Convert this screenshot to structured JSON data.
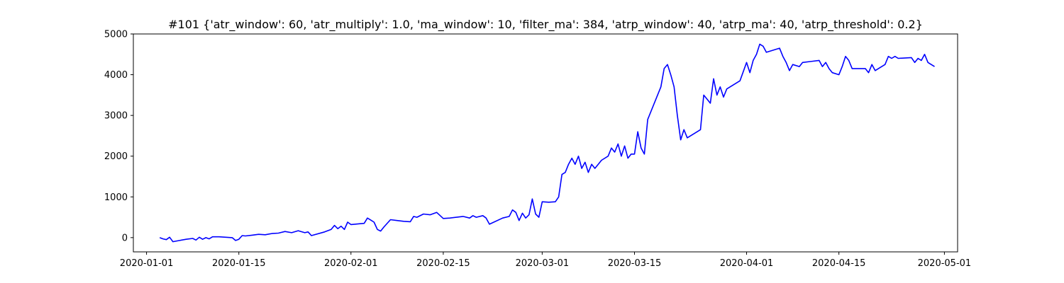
{
  "chart_data": {
    "type": "line",
    "title": "#101 {'atr_window': 60, 'atr_multiply': 1.0, 'ma_window': 10, 'filter_ma': 384, 'atrp_window': 40, 'atrp_ma': 40, 'atrp_threshold': 0.2}",
    "xlabel": "",
    "ylabel": "",
    "xlim": [
      "2019-12-30",
      "2020-05-03"
    ],
    "ylim": [
      -350,
      5000
    ],
    "x_ticks": [
      "2020-01-01",
      "2020-01-15",
      "2020-02-01",
      "2020-02-15",
      "2020-03-01",
      "2020-03-15",
      "2020-04-01",
      "2020-04-15",
      "2020-05-01"
    ],
    "y_ticks": [
      0,
      1000,
      2000,
      3000,
      4000,
      5000
    ],
    "grid": false,
    "line_color": "#0000ff",
    "series": [
      {
        "points": [
          [
            "2020-01-03",
            0
          ],
          [
            "2020-01-03T12",
            -30
          ],
          [
            "2020-01-04",
            -50
          ],
          [
            "2020-01-04T12",
            10
          ],
          [
            "2020-01-05",
            -100
          ],
          [
            "2020-01-06",
            -70
          ],
          [
            "2020-01-07",
            -40
          ],
          [
            "2020-01-08",
            -20
          ],
          [
            "2020-01-08T12",
            -60
          ],
          [
            "2020-01-09",
            10
          ],
          [
            "2020-01-09T12",
            -40
          ],
          [
            "2020-01-10",
            0
          ],
          [
            "2020-01-10T12",
            -30
          ],
          [
            "2020-01-11",
            20
          ],
          [
            "2020-01-12",
            20
          ],
          [
            "2020-01-14",
            0
          ],
          [
            "2020-01-14T12",
            -70
          ],
          [
            "2020-01-15",
            -40
          ],
          [
            "2020-01-15T12",
            50
          ],
          [
            "2020-01-16",
            40
          ],
          [
            "2020-01-17",
            60
          ],
          [
            "2020-01-18",
            80
          ],
          [
            "2020-01-19",
            70
          ],
          [
            "2020-01-20",
            100
          ],
          [
            "2020-01-21",
            110
          ],
          [
            "2020-01-22",
            150
          ],
          [
            "2020-01-23",
            120
          ],
          [
            "2020-01-24",
            170
          ],
          [
            "2020-01-25",
            120
          ],
          [
            "2020-01-25T12",
            140
          ],
          [
            "2020-01-26",
            50
          ],
          [
            "2020-01-28",
            140
          ],
          [
            "2020-01-29",
            200
          ],
          [
            "2020-01-29T12",
            300
          ],
          [
            "2020-01-30",
            220
          ],
          [
            "2020-01-30T12",
            280
          ],
          [
            "2020-01-31",
            200
          ],
          [
            "2020-01-31T12",
            380
          ],
          [
            "2020-02-01",
            320
          ],
          [
            "2020-02-03",
            350
          ],
          [
            "2020-02-03T12",
            480
          ],
          [
            "2020-02-04",
            430
          ],
          [
            "2020-02-04T12",
            380
          ],
          [
            "2020-02-05",
            200
          ],
          [
            "2020-02-05T12",
            160
          ],
          [
            "2020-02-06",
            260
          ],
          [
            "2020-02-07",
            440
          ],
          [
            "2020-02-08",
            420
          ],
          [
            "2020-02-09",
            400
          ],
          [
            "2020-02-10",
            390
          ],
          [
            "2020-02-10T12",
            520
          ],
          [
            "2020-02-11",
            500
          ],
          [
            "2020-02-12",
            580
          ],
          [
            "2020-02-13",
            560
          ],
          [
            "2020-02-14",
            620
          ],
          [
            "2020-02-15",
            470
          ],
          [
            "2020-02-16",
            480
          ],
          [
            "2020-02-18",
            520
          ],
          [
            "2020-02-19",
            480
          ],
          [
            "2020-02-19T12",
            540
          ],
          [
            "2020-02-20",
            500
          ],
          [
            "2020-02-21",
            540
          ],
          [
            "2020-02-21T12",
            480
          ],
          [
            "2020-02-22",
            330
          ],
          [
            "2020-02-24",
            480
          ],
          [
            "2020-02-25",
            520
          ],
          [
            "2020-02-25T12",
            680
          ],
          [
            "2020-02-26",
            620
          ],
          [
            "2020-02-26T12",
            420
          ],
          [
            "2020-02-27",
            600
          ],
          [
            "2020-02-27T12",
            480
          ],
          [
            "2020-02-28",
            560
          ],
          [
            "2020-02-28T12",
            950
          ],
          [
            "2020-02-29",
            580
          ],
          [
            "2020-02-29T12",
            500
          ],
          [
            "2020-03-01",
            880
          ],
          [
            "2020-03-02",
            870
          ],
          [
            "2020-03-03",
            880
          ],
          [
            "2020-03-03T12",
            1000
          ],
          [
            "2020-03-04",
            1550
          ],
          [
            "2020-03-04T12",
            1600
          ],
          [
            "2020-03-05",
            1800
          ],
          [
            "2020-03-05T12",
            1950
          ],
          [
            "2020-03-06",
            1800
          ],
          [
            "2020-03-06T12",
            2000
          ],
          [
            "2020-03-07",
            1700
          ],
          [
            "2020-03-07T12",
            1850
          ],
          [
            "2020-03-08",
            1600
          ],
          [
            "2020-03-08T12",
            1800
          ],
          [
            "2020-03-09",
            1700
          ],
          [
            "2020-03-10",
            1900
          ],
          [
            "2020-03-11",
            2000
          ],
          [
            "2020-03-11T12",
            2200
          ],
          [
            "2020-03-12",
            2100
          ],
          [
            "2020-03-12T12",
            2300
          ],
          [
            "2020-03-13",
            2000
          ],
          [
            "2020-03-13T12",
            2250
          ],
          [
            "2020-03-14",
            1950
          ],
          [
            "2020-03-14T12",
            2050
          ],
          [
            "2020-03-15",
            2050
          ],
          [
            "2020-03-15T12",
            2600
          ],
          [
            "2020-03-16",
            2200
          ],
          [
            "2020-03-16T12",
            2050
          ],
          [
            "2020-03-17",
            2900
          ],
          [
            "2020-03-19",
            3700
          ],
          [
            "2020-03-19T12",
            4150
          ],
          [
            "2020-03-20",
            4250
          ],
          [
            "2020-03-20T12",
            4000
          ],
          [
            "2020-03-21",
            3700
          ],
          [
            "2020-03-21T12",
            3000
          ],
          [
            "2020-03-22",
            2400
          ],
          [
            "2020-03-22T12",
            2650
          ],
          [
            "2020-03-23",
            2450
          ],
          [
            "2020-03-25",
            2650
          ],
          [
            "2020-03-25T12",
            3500
          ],
          [
            "2020-03-26",
            3400
          ],
          [
            "2020-03-26T12",
            3300
          ],
          [
            "2020-03-27",
            3900
          ],
          [
            "2020-03-27T12",
            3500
          ],
          [
            "2020-03-28",
            3700
          ],
          [
            "2020-03-28T12",
            3450
          ],
          [
            "2020-03-29",
            3650
          ],
          [
            "2020-03-31",
            3850
          ],
          [
            "2020-04-01",
            4300
          ],
          [
            "2020-04-01T12",
            4050
          ],
          [
            "2020-04-02",
            4350
          ],
          [
            "2020-04-02T12",
            4500
          ],
          [
            "2020-04-03",
            4750
          ],
          [
            "2020-04-03T12",
            4700
          ],
          [
            "2020-04-04",
            4550
          ],
          [
            "2020-04-06",
            4650
          ],
          [
            "2020-04-06T12",
            4450
          ],
          [
            "2020-04-07",
            4300
          ],
          [
            "2020-04-07T12",
            4100
          ],
          [
            "2020-04-08",
            4250
          ],
          [
            "2020-04-09",
            4200
          ],
          [
            "2020-04-09T12",
            4300
          ],
          [
            "2020-04-12",
            4350
          ],
          [
            "2020-04-12T12",
            4200
          ],
          [
            "2020-04-13",
            4300
          ],
          [
            "2020-04-13T12",
            4150
          ],
          [
            "2020-04-14",
            4050
          ],
          [
            "2020-04-15",
            4000
          ],
          [
            "2020-04-15T12",
            4200
          ],
          [
            "2020-04-16",
            4450
          ],
          [
            "2020-04-16T12",
            4350
          ],
          [
            "2020-04-17",
            4150
          ],
          [
            "2020-04-19",
            4150
          ],
          [
            "2020-04-19T12",
            4050
          ],
          [
            "2020-04-20",
            4250
          ],
          [
            "2020-04-20T12",
            4100
          ],
          [
            "2020-04-21",
            4150
          ],
          [
            "2020-04-22",
            4250
          ],
          [
            "2020-04-22T12",
            4450
          ],
          [
            "2020-04-23",
            4400
          ],
          [
            "2020-04-23T12",
            4450
          ],
          [
            "2020-04-24",
            4400
          ],
          [
            "2020-04-26",
            4420
          ],
          [
            "2020-04-26T12",
            4300
          ],
          [
            "2020-04-27",
            4400
          ],
          [
            "2020-04-27T12",
            4350
          ],
          [
            "2020-04-28",
            4500
          ],
          [
            "2020-04-28T12",
            4300
          ],
          [
            "2020-04-29",
            4250
          ],
          [
            "2020-04-29T12",
            4200
          ]
        ]
      }
    ]
  }
}
